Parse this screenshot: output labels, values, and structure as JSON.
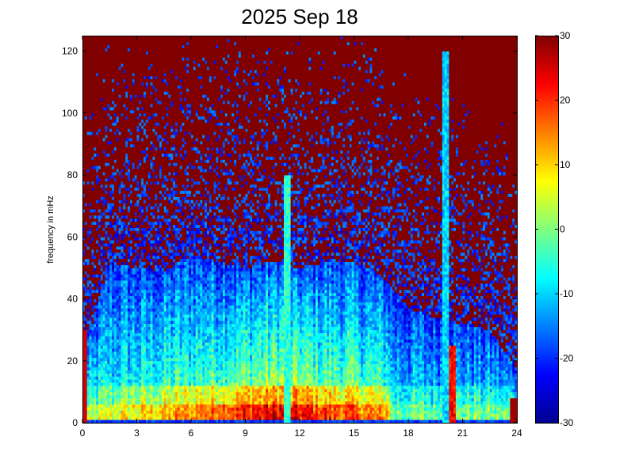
{
  "chart_data": {
    "type": "heatmap",
    "title": "2025 Sep 18",
    "xlabel": "",
    "ylabel": "frequency in mHz",
    "x_ticks": [
      "0",
      "3",
      "6",
      "9",
      "12",
      "15",
      "18",
      "21",
      "24"
    ],
    "y_ticks": [
      "0",
      "20",
      "40",
      "60",
      "80",
      "100",
      "120"
    ],
    "xlim": [
      0,
      24
    ],
    "ylim": [
      0,
      125
    ],
    "colorbar": {
      "colormap": "jet",
      "range": [
        -30,
        30
      ],
      "ticks": [
        "30",
        "20",
        "10",
        "0",
        "-10",
        "-20",
        "-30"
      ]
    },
    "description_grid": {
      "x_hours": [
        0,
        1.5,
        3,
        4.5,
        6,
        7.5,
        9,
        10.5,
        12,
        13.5,
        15,
        16.5,
        18,
        19.5,
        21,
        22.5,
        24
      ],
      "freq_mHz": [
        0,
        2,
        5,
        10,
        15,
        20,
        25,
        30,
        35,
        40,
        45,
        50,
        55,
        60,
        65,
        70,
        80,
        90,
        100,
        110,
        125
      ],
      "noise_floor_freq_mHz": [
        28,
        60,
        58,
        57,
        62,
        60,
        58,
        60,
        58,
        60,
        60,
        55,
        45,
        42,
        40,
        38,
        25
      ]
    },
    "features": [
      {
        "x_hour": 20.1,
        "freq_range_mHz": [
          0,
          120
        ],
        "level": -10
      },
      {
        "x_hour": 20.4,
        "freq_range_mHz": [
          0,
          25
        ],
        "level": 22
      },
      {
        "x_hour": 11.3,
        "freq_range_mHz": [
          0,
          80
        ],
        "level": -5
      }
    ]
  },
  "colors": {
    "background": "#ffffff",
    "axis": "#000000"
  }
}
